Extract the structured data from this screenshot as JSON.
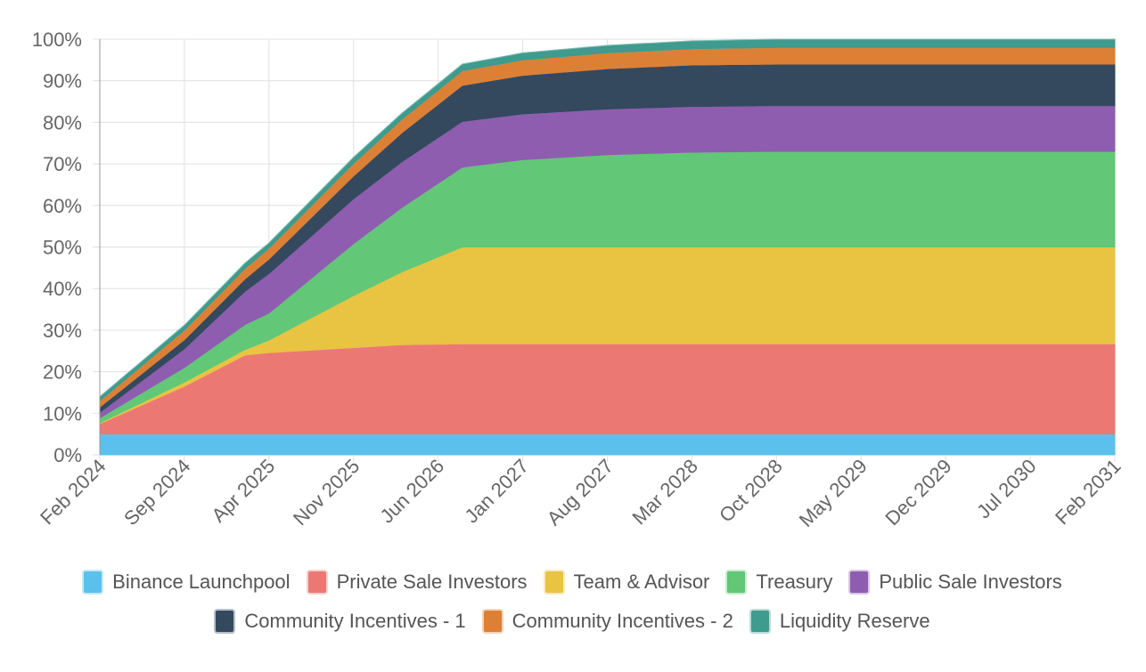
{
  "colors": {
    "grid": "#e0e0e0",
    "axis": "#999999",
    "tick_text": "#666666"
  },
  "chart_data": {
    "type": "area",
    "stacked": true,
    "title": "",
    "xlabel": "",
    "ylabel": "",
    "ylim": [
      0,
      100
    ],
    "y_ticks": [
      "0%",
      "10%",
      "20%",
      "30%",
      "40%",
      "50%",
      "60%",
      "70%",
      "80%",
      "90%",
      "100%"
    ],
    "x": [
      "Feb 2024",
      "Sep 2024",
      "Apr 2025",
      "Nov 2025",
      "Jun 2026",
      "Jan 2027",
      "Aug 2027",
      "Mar 2028",
      "Oct 2028",
      "May 2029",
      "Dec 2029",
      "Jul 2030",
      "Feb 2031"
    ],
    "x_months": [
      0,
      7,
      14,
      21,
      28,
      35,
      42,
      49,
      56,
      63,
      70,
      77,
      84
    ],
    "grid": true,
    "legend_position": "bottom",
    "series": [
      {
        "name": "Binance Launchpool",
        "color": "#5bc0eb",
        "points": [
          [
            0,
            5
          ],
          [
            84,
            5
          ]
        ]
      },
      {
        "name": "Private Sale Investors",
        "color": "#ec7873",
        "points": [
          [
            0,
            2.5
          ],
          [
            7,
            11.5
          ],
          [
            12,
            19
          ],
          [
            14,
            19.6
          ],
          [
            21,
            20.8
          ],
          [
            25,
            21.5
          ],
          [
            30,
            21.7
          ],
          [
            84,
            21.7
          ]
        ]
      },
      {
        "name": "Team & Advisor",
        "color": "#e9c342",
        "points": [
          [
            0,
            0.2
          ],
          [
            7,
            1.0
          ],
          [
            12,
            1.3
          ],
          [
            14,
            3.0
          ],
          [
            21,
            12.5
          ],
          [
            25,
            17.5
          ],
          [
            30,
            23.3
          ],
          [
            84,
            23.3
          ]
        ]
      },
      {
        "name": "Treasury",
        "color": "#62c776",
        "points": [
          [
            0,
            1.2
          ],
          [
            7,
            3.5
          ],
          [
            12,
            6
          ],
          [
            14,
            6.5
          ],
          [
            21,
            12.5
          ],
          [
            25,
            15.5
          ],
          [
            30,
            19.2
          ],
          [
            35,
            21
          ],
          [
            42,
            22.2
          ],
          [
            49,
            22.8
          ],
          [
            56,
            23
          ],
          [
            84,
            23
          ]
        ]
      },
      {
        "name": "Public Sale Investors",
        "color": "#8e5db0",
        "points": [
          [
            0,
            1.3
          ],
          [
            7,
            4.5
          ],
          [
            12,
            8
          ],
          [
            14,
            9.5
          ],
          [
            21,
            10.8
          ],
          [
            25,
            11
          ],
          [
            30,
            11
          ],
          [
            84,
            11
          ]
        ]
      },
      {
        "name": "Community Incentives - 1",
        "color": "#34495e",
        "points": [
          [
            0,
            1.3
          ],
          [
            7,
            2.2
          ],
          [
            12,
            3
          ],
          [
            14,
            3.5
          ],
          [
            21,
            5.5
          ],
          [
            25,
            7
          ],
          [
            30,
            8.7
          ],
          [
            35,
            9.3
          ],
          [
            42,
            9.7
          ],
          [
            49,
            10
          ],
          [
            56,
            10
          ],
          [
            84,
            10
          ]
        ]
      },
      {
        "name": "Community Incentives - 2",
        "color": "#dc8036",
        "points": [
          [
            0,
            1.5
          ],
          [
            7,
            2.3
          ],
          [
            12,
            2.5
          ],
          [
            14,
            2.6
          ],
          [
            21,
            3
          ],
          [
            25,
            3.2
          ],
          [
            30,
            3.5
          ],
          [
            35,
            3.7
          ],
          [
            42,
            3.8
          ],
          [
            49,
            3.9
          ],
          [
            56,
            4
          ],
          [
            84,
            4
          ]
        ]
      },
      {
        "name": "Liquidity Reserve",
        "color": "#3e9b8d",
        "points": [
          [
            0,
            1
          ],
          [
            7,
            1.2
          ],
          [
            12,
            1.3
          ],
          [
            14,
            1.3
          ],
          [
            21,
            1.5
          ],
          [
            25,
            1.5
          ],
          [
            30,
            1.6
          ],
          [
            35,
            1.7
          ],
          [
            42,
            1.8
          ],
          [
            49,
            1.9
          ],
          [
            56,
            2
          ],
          [
            84,
            2
          ]
        ]
      }
    ]
  }
}
